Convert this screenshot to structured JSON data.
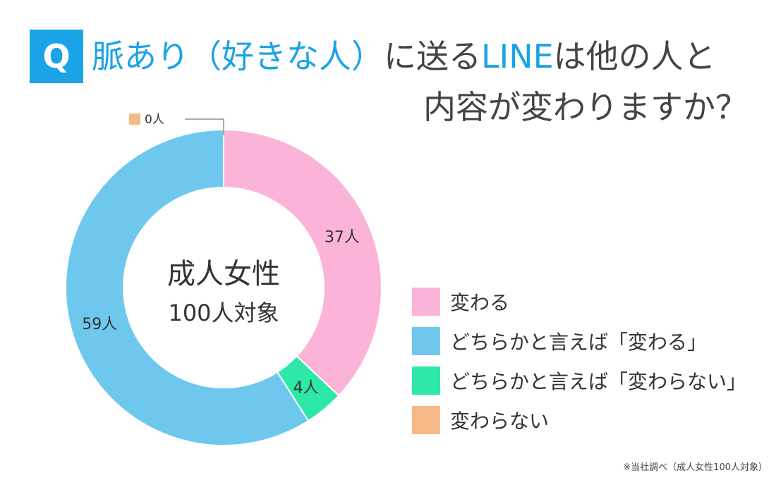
{
  "header": {
    "q_label": "Q",
    "title_line1_highlight": "脈あり（好きな人）",
    "title_line1_middle": "に送る",
    "title_line1_highlight2": "LINE",
    "title_line1_end": "は他の人と",
    "title_line2": "内容が変わりますか？"
  },
  "footnote": "※当社調べ（成人女性100人対象）",
  "chart_data": {
    "type": "pie",
    "center_title": "成人女性",
    "center_subtitle": "100人対象",
    "unit": "人",
    "slices": [
      {
        "label": "変わる",
        "value": 37,
        "color": "#fbb3d8"
      },
      {
        "label": "どちらかと言えば「変わらない」",
        "value": 4,
        "color": "#2de8a6"
      },
      {
        "label": "変わらない",
        "value": 0,
        "color": "#f5b886"
      },
      {
        "label": "どちらかと言えば「変わる」",
        "value": 59,
        "color": "#6ec8ee"
      }
    ],
    "legend": [
      {
        "label": "変わる",
        "color": "#fbb3d8"
      },
      {
        "label": "どちらかと言えば「変わる」",
        "color": "#6ec8ee"
      },
      {
        "label": "どちらかと言えば「変わらない」",
        "color": "#2de8a6"
      },
      {
        "label": "変わらない",
        "color": "#f5b886"
      }
    ],
    "data_labels": [
      "37人",
      "4人",
      "0人",
      "59人"
    ]
  }
}
